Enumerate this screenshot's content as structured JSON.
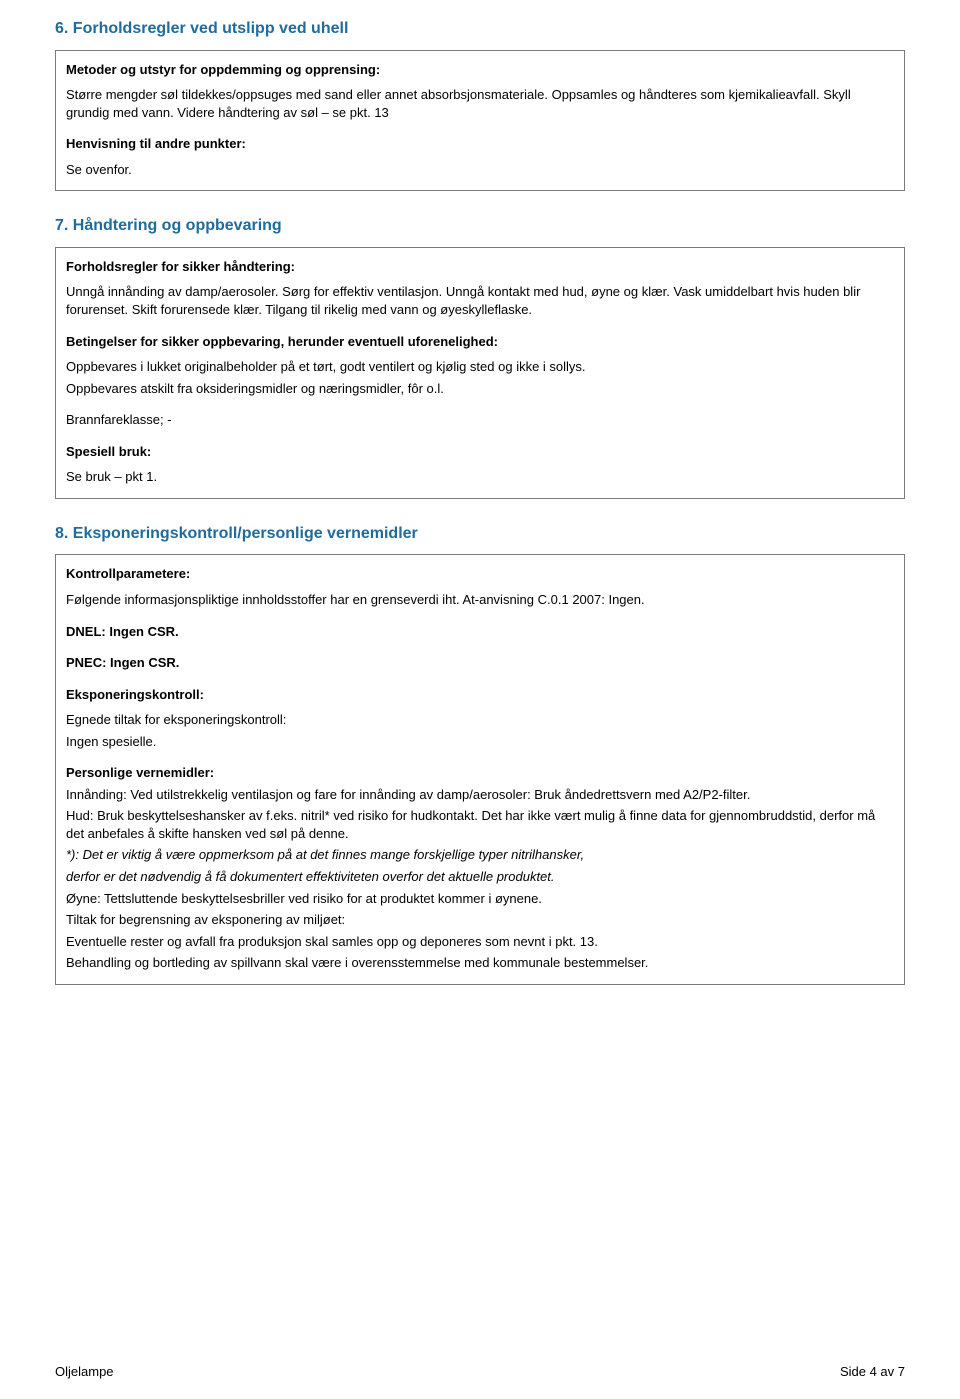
{
  "section6": {
    "title": "6. Forholdsregler ved utslipp ved uhell",
    "label_methods": "Metoder og utstyr for oppdemming og opprensing:",
    "methods_text": "Større mengder søl tildekkes/oppsuges med sand eller annet absorbsjonsmateriale. Oppsamles og håndteres som kjemikalieavfall. Skyll grundig med vann. Videre håndtering av søl – se pkt. 13",
    "label_ref": "Henvisning til andre punkter:",
    "ref_text": "Se ovenfor."
  },
  "section7": {
    "title": "7. Håndtering og oppbevaring",
    "label_handling": "Forholdsregler for sikker håndtering:",
    "handling_text": "Unngå innånding av damp/aerosoler. Sørg for effektiv ventilasjon. Unngå kontakt med hud, øyne og klær. Vask umiddelbart hvis huden blir forurenset. Skift forurensede klær. Tilgang til rikelig med vann og øyeskylleflaske.",
    "label_storage": "Betingelser for sikker oppbevaring, herunder eventuell uforenelighed:",
    "storage_text1": "Oppbevares i lukket originalbeholder på et tørt, godt ventilert og kjølig sted og ikke i sollys.",
    "storage_text2": "Oppbevares atskilt fra oksideringsmidler og næringsmidler, fôr o.l.",
    "fireclass": "Brannfareklasse; -",
    "label_special": "Spesiell bruk:",
    "special_text": "Se bruk – pkt 1."
  },
  "section8": {
    "title": "8. Eksponeringskontroll/personlige vernemidler",
    "label_control": "Kontrollparametere:",
    "control_text": "Følgende informasjonspliktige innholdsstoffer har en grenseverdi iht. At-anvisning C.0.1 2007: Ingen.",
    "dnel": "DNEL: Ingen CSR.",
    "pnec": "PNEC: Ingen CSR.",
    "label_exposure": "Eksponeringskontroll:",
    "exposure_line1": "Egnede tiltak for eksponeringskontroll:",
    "exposure_line2": "Ingen spesielle.",
    "label_ppe": "Personlige vernemidler:",
    "ppe_line1": "Innånding: Ved utilstrekkelig ventilasjon og fare for innånding av damp/aerosoler: Bruk åndedrettsvern med A2/P2-filter.",
    "ppe_line2": "Hud: Bruk beskyttelseshansker av f.eks. nitril* ved risiko for hudkontakt. Det har ikke vært mulig å finne data for gjennombruddstid, derfor må det anbefales å skifte hansken ved søl på denne.",
    "ppe_star1": "*): Det er viktig å være oppmerksom på at det finnes mange forskjellige typer nitrilhansker,",
    "ppe_star2": "derfor er det nødvendig å få dokumentert effektiviteten overfor det aktuelle produktet.",
    "ppe_line3": "Øyne: Tettsluttende beskyttelsesbriller ved risiko for at produktet kommer i øynene.",
    "ppe_env1": "Tiltak for begrensning av eksponering av miljøet:",
    "ppe_env2": "Eventuelle rester og avfall fra produksjon skal samles opp og deponeres som nevnt i pkt. 13.",
    "ppe_env3": "Behandling og bortleding av spillvann skal være i overensstemmelse med kommunale bestemmelser."
  },
  "footer": {
    "left": "Oljelampe",
    "right": "Side 4 av 7"
  },
  "colors": {
    "heading": "#1f6b9c",
    "border": "#7a7a7a",
    "text": "#000000",
    "background": "#ffffff"
  }
}
